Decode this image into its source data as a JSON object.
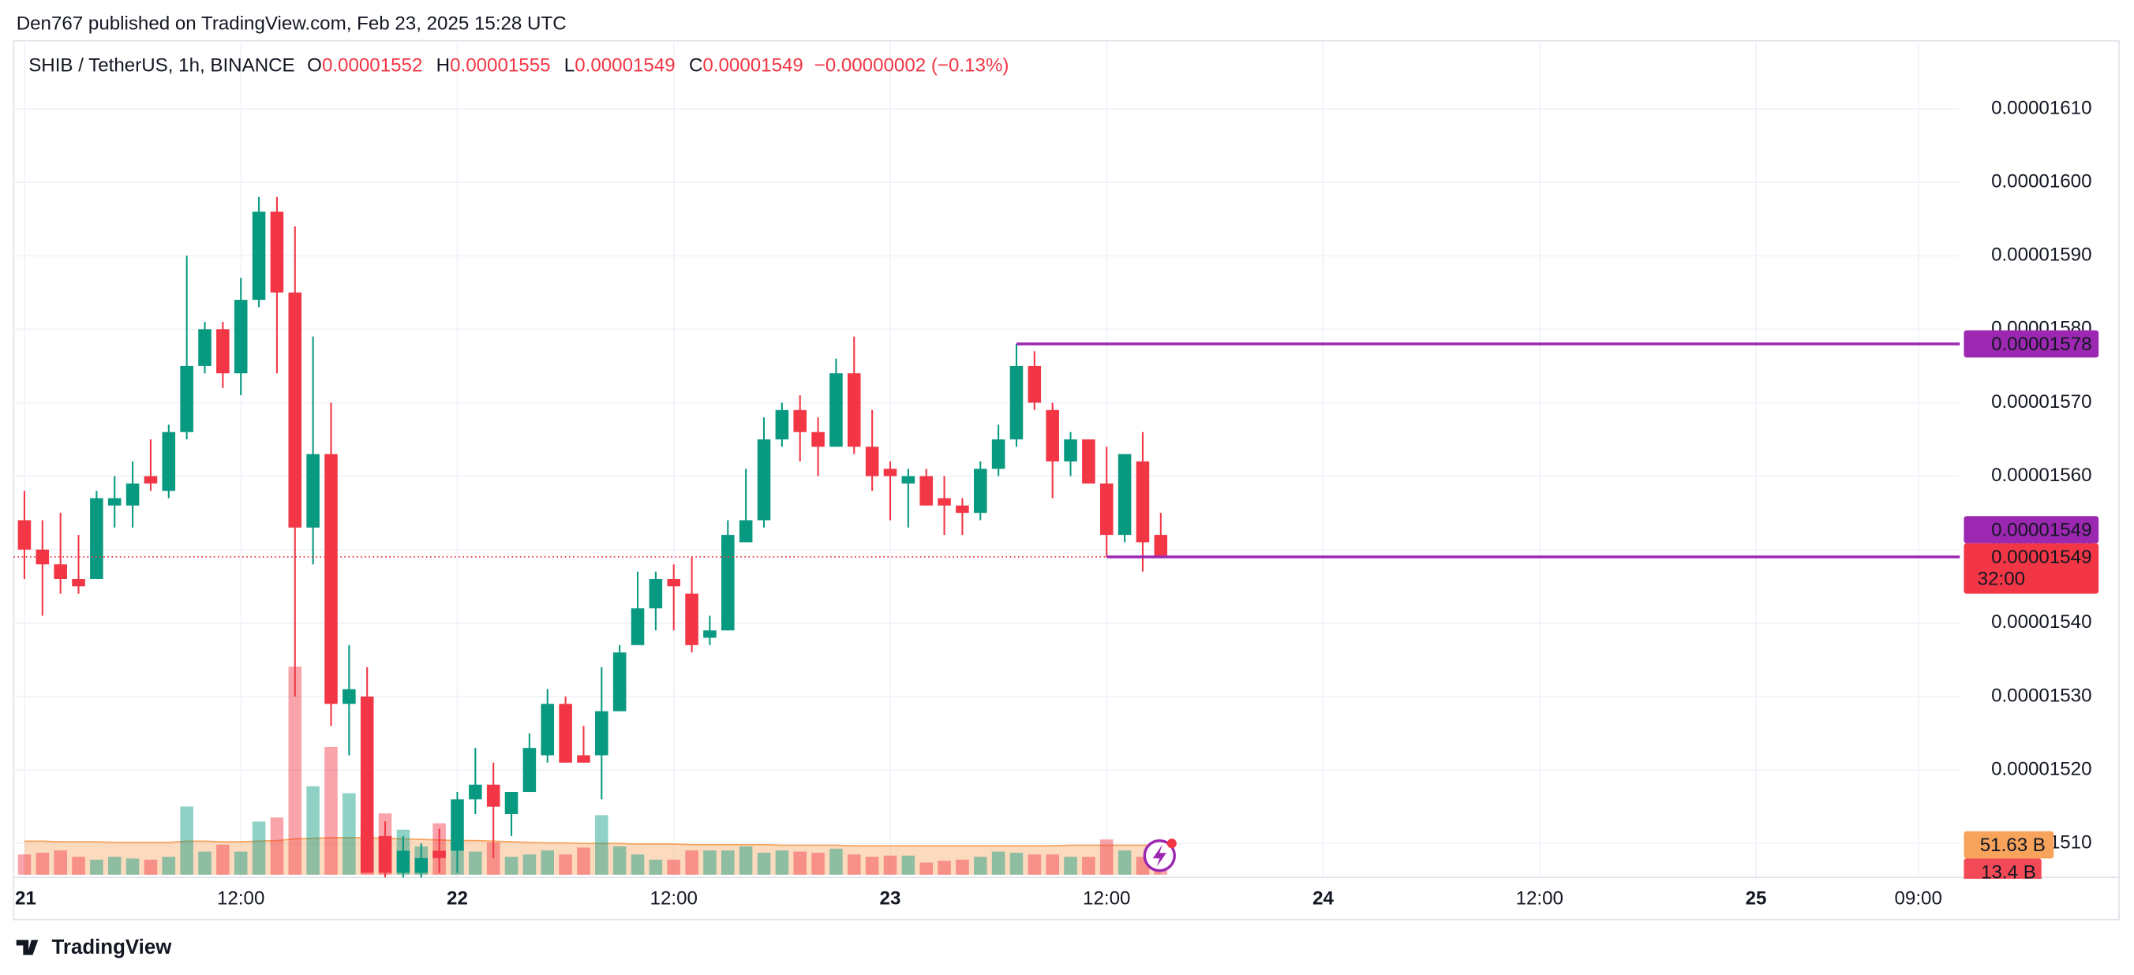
{
  "header": {
    "text": "Den767 published on TradingView.com, Feb 23, 2025 15:28 UTC"
  },
  "footer": {
    "brand": "TradingView"
  },
  "chart_data": {
    "type": "candlestick",
    "title": "SHIB / TetherUS, 1h, BINANCE",
    "legend": [
      {
        "key": "O",
        "value": "0.00001552"
      },
      {
        "key": "H",
        "value": "0.00001555"
      },
      {
        "key": "L",
        "value": "0.00001549"
      },
      {
        "key": "C",
        "value": "0.00001549"
      }
    ],
    "change": "−0.00000002 (−0.13%)",
    "up_color": "#089981",
    "down_color": "#f23645",
    "open": [
      1.554e-05,
      1.55e-05,
      1.548e-05,
      1.546e-05,
      1.546e-05,
      1.556e-05,
      1.556e-05,
      1.56e-05,
      1.558e-05,
      1.566e-05,
      1.575e-05,
      1.58e-05,
      1.574e-05,
      1.584e-05,
      1.596e-05,
      1.585e-05,
      1.553e-05,
      1.563e-05,
      1.529e-05,
      1.53e-05,
      1.511e-05,
      1.506e-05,
      1.506e-05,
      1.509e-05,
      1.509e-05,
      1.516e-05,
      1.518e-05,
      1.514e-05,
      1.517e-05,
      1.522e-05,
      1.529e-05,
      1.522e-05,
      1.522e-05,
      1.528e-05,
      1.537e-05,
      1.542e-05,
      1.546e-05,
      1.544e-05,
      1.538e-05,
      1.539e-05,
      1.551e-05,
      1.554e-05,
      1.565e-05,
      1.569e-05,
      1.566e-05,
      1.564e-05,
      1.574e-05,
      1.564e-05,
      1.561e-05,
      1.559e-05,
      1.56e-05,
      1.557e-05,
      1.556e-05,
      1.555e-05,
      1.561e-05,
      1.565e-05,
      1.575e-05,
      1.569e-05,
      1.562e-05,
      1.565e-05,
      1.559e-05,
      1.552e-05,
      1.562e-05,
      1.552e-05
    ],
    "high": [
      1.558e-05,
      1.554e-05,
      1.555e-05,
      1.552e-05,
      1.558e-05,
      1.56e-05,
      1.562e-05,
      1.565e-05,
      1.567e-05,
      1.59e-05,
      1.581e-05,
      1.581e-05,
      1.587e-05,
      1.598e-05,
      1.598e-05,
      1.594e-05,
      1.579e-05,
      1.57e-05,
      1.537e-05,
      1.534e-05,
      1.513e-05,
      1.511e-05,
      1.51e-05,
      1.512e-05,
      1.517e-05,
      1.523e-05,
      1.521e-05,
      1.517e-05,
      1.525e-05,
      1.531e-05,
      1.53e-05,
      1.526e-05,
      1.534e-05,
      1.537e-05,
      1.547e-05,
      1.547e-05,
      1.548e-05,
      1.549e-05,
      1.541e-05,
      1.554e-05,
      1.561e-05,
      1.568e-05,
      1.57e-05,
      1.571e-05,
      1.568e-05,
      1.576e-05,
      1.579e-05,
      1.569e-05,
      1.562e-05,
      1.561e-05,
      1.561e-05,
      1.56e-05,
      1.557e-05,
      1.562e-05,
      1.567e-05,
      1.578e-05,
      1.577e-05,
      1.57e-05,
      1.566e-05,
      1.565e-05,
      1.564e-05,
      1.563e-05,
      1.566e-05,
      1.555e-05
    ],
    "low": [
      1.546e-05,
      1.541e-05,
      1.544e-05,
      1.544e-05,
      1.546e-05,
      1.553e-05,
      1.553e-05,
      1.558e-05,
      1.557e-05,
      1.565e-05,
      1.574e-05,
      1.572e-05,
      1.571e-05,
      1.583e-05,
      1.574e-05,
      1.53e-05,
      1.548e-05,
      1.526e-05,
      1.522e-05,
      1.506e-05,
      1.505e-05,
      1.505e-05,
      1.505e-05,
      1.506e-05,
      1.506e-05,
      1.514e-05,
      1.508e-05,
      1.511e-05,
      1.517e-05,
      1.521e-05,
      1.521e-05,
      1.521e-05,
      1.516e-05,
      1.528e-05,
      1.537e-05,
      1.539e-05,
      1.539e-05,
      1.536e-05,
      1.537e-05,
      1.539e-05,
      1.551e-05,
      1.553e-05,
      1.564e-05,
      1.562e-05,
      1.56e-05,
      1.564e-05,
      1.563e-05,
      1.558e-05,
      1.554e-05,
      1.553e-05,
      1.556e-05,
      1.552e-05,
      1.552e-05,
      1.554e-05,
      1.56e-05,
      1.564e-05,
      1.569e-05,
      1.557e-05,
      1.56e-05,
      1.559e-05,
      1.549e-05,
      1.551e-05,
      1.547e-05,
      1.549e-05
    ],
    "close": [
      1.55e-05,
      1.548e-05,
      1.546e-05,
      1.545e-05,
      1.557e-05,
      1.557e-05,
      1.559e-05,
      1.559e-05,
      1.566e-05,
      1.575e-05,
      1.58e-05,
      1.574e-05,
      1.584e-05,
      1.596e-05,
      1.585e-05,
      1.553e-05,
      1.563e-05,
      1.529e-05,
      1.531e-05,
      1.506e-05,
      1.506e-05,
      1.509e-05,
      1.508e-05,
      1.508e-05,
      1.516e-05,
      1.518e-05,
      1.515e-05,
      1.517e-05,
      1.523e-05,
      1.529e-05,
      1.521e-05,
      1.521e-05,
      1.528e-05,
      1.536e-05,
      1.542e-05,
      1.546e-05,
      1.545e-05,
      1.537e-05,
      1.539e-05,
      1.552e-05,
      1.554e-05,
      1.565e-05,
      1.569e-05,
      1.566e-05,
      1.564e-05,
      1.574e-05,
      1.564e-05,
      1.56e-05,
      1.56e-05,
      1.56e-05,
      1.556e-05,
      1.556e-05,
      1.555e-05,
      1.561e-05,
      1.565e-05,
      1.575e-05,
      1.57e-05,
      1.562e-05,
      1.565e-05,
      1.559e-05,
      1.552e-05,
      1.563e-05,
      1.551e-05,
      1.549e-05
    ],
    "volume": [
      35,
      38,
      42,
      31,
      26,
      31,
      28,
      26,
      31,
      118,
      40,
      52,
      40,
      92,
      99,
      360,
      153,
      221,
      141,
      89,
      106,
      78,
      49,
      89,
      49,
      40,
      56,
      31,
      35,
      42,
      35,
      47,
      103,
      49,
      35,
      26,
      26,
      42,
      42,
      42,
      49,
      38,
      42,
      40,
      38,
      45,
      35,
      31,
      33,
      33,
      21,
      24,
      26,
      31,
      40,
      38,
      35,
      35,
      31,
      31,
      61,
      42,
      31,
      13.4
    ],
    "volume_label": "13.4 B",
    "volume_ma": [
      58,
      58,
      57,
      57,
      57,
      56,
      56,
      56,
      56,
      58,
      58,
      57,
      57,
      58,
      59,
      62,
      63,
      64,
      64,
      64,
      63,
      62,
      61,
      60,
      59,
      59,
      58,
      57,
      56,
      55,
      55,
      54,
      54,
      54,
      53,
      53,
      53,
      52,
      52,
      52,
      52,
      52,
      51,
      51,
      51,
      51,
      50,
      50,
      50,
      50,
      50,
      50,
      50,
      50,
      50,
      50,
      50,
      50,
      51,
      51,
      51,
      51,
      51,
      51.63
    ],
    "volume_ma_label": "51.63 B",
    "volume_ma_color": "#f7a35c",
    "vlim": [
      0,
      360
    ],
    "xlim": [
      -0.6,
      107.3
    ],
    "xticks": [
      {
        "value": 0,
        "label": "21"
      },
      {
        "value": 12,
        "label": "12:00"
      },
      {
        "value": 24,
        "label": "22"
      },
      {
        "value": 36,
        "label": "12:00"
      },
      {
        "value": 48,
        "label": "23"
      },
      {
        "value": 60,
        "label": "12:00"
      },
      {
        "value": 72,
        "label": "24"
      },
      {
        "value": 84,
        "label": "12:00"
      },
      {
        "value": 96,
        "label": "25"
      },
      {
        "value": 105,
        "label": "09:00"
      }
    ],
    "ylim": [
      1.505e-05,
      1.62e-05
    ],
    "yticks": [
      {
        "value": 1.51e-05,
        "label": "0.00001510"
      },
      {
        "value": 1.52e-05,
        "label": "0.00001520"
      },
      {
        "value": 1.53e-05,
        "label": "0.00001530"
      },
      {
        "value": 1.54e-05,
        "label": "0.00001540"
      },
      {
        "value": 1.55e-05,
        "label": "0.00001550"
      },
      {
        "value": 1.56e-05,
        "label": "0.00001560"
      },
      {
        "value": 1.57e-05,
        "label": "0.00001570"
      },
      {
        "value": 1.58e-05,
        "label": "0.00001580"
      },
      {
        "value": 1.59e-05,
        "label": "0.00001590"
      },
      {
        "value": 1.6e-05,
        "label": "0.00001600"
      },
      {
        "value": 1.61e-05,
        "label": "0.00001610"
      }
    ],
    "grid": true,
    "hlines": [
      {
        "value": 1.578e-05,
        "label": "0.00001578",
        "color": "#9c27b0",
        "from": 55
      },
      {
        "value": 1.549e-05,
        "label": "0.00001549",
        "color": "#9c27b0",
        "from": 60
      }
    ],
    "last_price": {
      "value": 1.549e-05,
      "label": "0.00001549",
      "countdown": "32:00",
      "color": "#f23645"
    }
  }
}
